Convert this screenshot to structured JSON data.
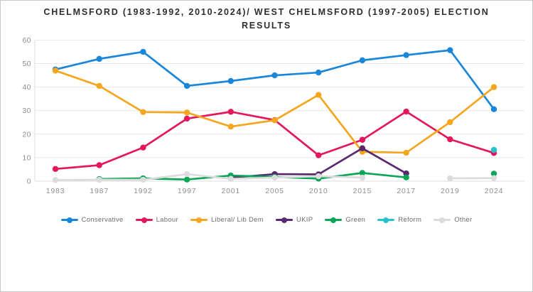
{
  "header": {
    "title_line1": "CHELMSFORD (1983-1992, 2010-2024)/ WEST CHELMSFORD (1997-2005) ELECTION",
    "title_line2": "RESULTS"
  },
  "chart_data": {
    "type": "line",
    "title": "CHELMSFORD (1983-1992, 2010-2024)/ WEST CHELMSFORD (1997-2005) ELECTION RESULTS",
    "categories": [
      "1983",
      "1987",
      "1992",
      "1997",
      "2001",
      "2005",
      "2010",
      "2015",
      "2017",
      "2019",
      "2024"
    ],
    "xlabel": "",
    "ylabel": "",
    "ylim": [
      0,
      60
    ],
    "yticks": [
      0,
      10,
      20,
      30,
      40,
      50,
      60
    ],
    "grid": true,
    "legend_position": "bottom",
    "series": [
      {
        "name": "Conservative",
        "color": "#1a86d9",
        "values": [
          47.5,
          52,
          55,
          40.5,
          42.6,
          45,
          46.2,
          51.4,
          53.6,
          55.7,
          30.6
        ]
      },
      {
        "name": "Labour",
        "color": "#e3185a",
        "values": [
          5.2,
          6.8,
          14.3,
          26.6,
          29.5,
          26,
          11,
          17.6,
          29.6,
          17.8,
          12
        ]
      },
      {
        "name": "Liberal/ Lib Dem",
        "color": "#f5a61f",
        "values": [
          47,
          40.5,
          29.4,
          29.2,
          23.2,
          25.9,
          36.7,
          12.5,
          12.1,
          25.1,
          40
        ]
      },
      {
        "name": "UKIP",
        "color": "#58296e",
        "values": [
          null,
          null,
          null,
          null,
          1.5,
          3,
          2.9,
          14,
          3.3,
          null,
          null
        ]
      },
      {
        "name": "Green",
        "color": "#0ba558",
        "values": [
          null,
          0.9,
          1.2,
          0.7,
          2.4,
          1.8,
          1.1,
          3.5,
          1.6,
          null,
          3.2
        ]
      },
      {
        "name": "Reform",
        "color": "#26c1ca",
        "values": [
          null,
          null,
          null,
          null,
          null,
          null,
          null,
          null,
          null,
          null,
          13.3
        ]
      },
      {
        "name": "Other",
        "color": "#dcdcdc",
        "values": [
          0.5,
          0.6,
          0.6,
          3,
          1,
          1.5,
          2.1,
          1.5,
          null,
          1.2,
          1.3
        ]
      }
    ]
  }
}
